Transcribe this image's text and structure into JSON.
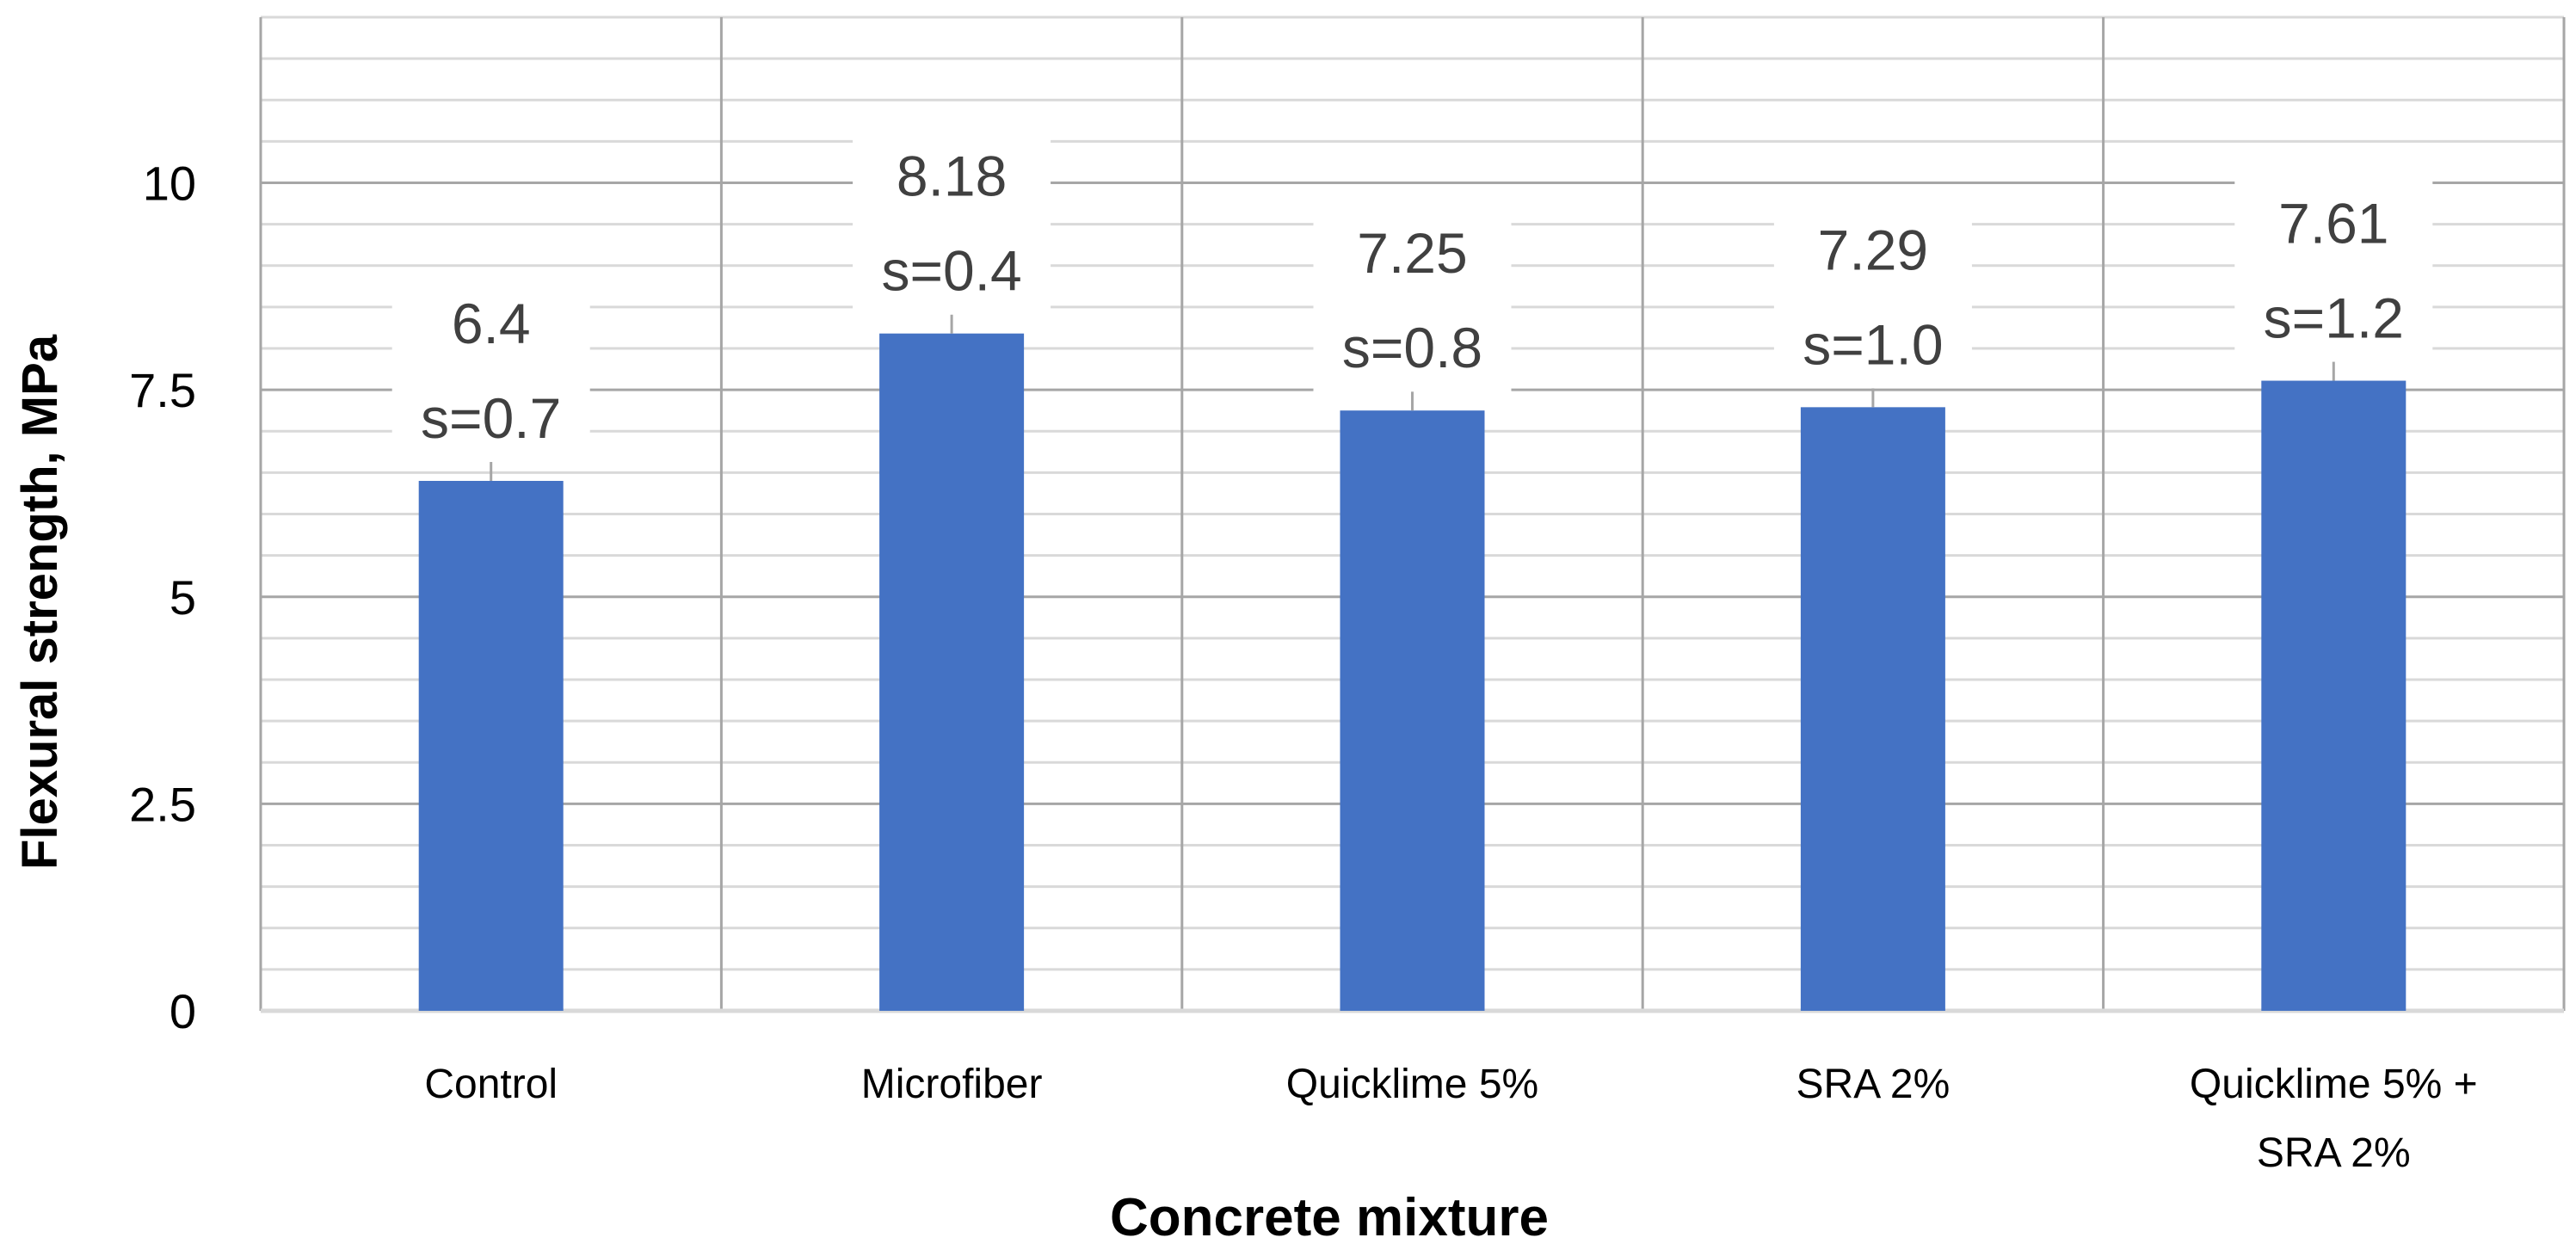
{
  "chart_data": {
    "type": "bar",
    "title": "",
    "xlabel": "Concrete mixture",
    "ylabel": "Flexural strength, MPa",
    "ylim": [
      0,
      12
    ],
    "yticks": [
      "0",
      "2.5",
      "5",
      "7.5",
      "10"
    ],
    "grid": {
      "major": true,
      "minor": true,
      "vertical_separators": true
    },
    "bar_color": "#4472C4",
    "label_color": "#404040",
    "categories": [
      [
        "Control"
      ],
      [
        "Microfiber"
      ],
      [
        "Quicklime 5%"
      ],
      [
        "SRA 2%"
      ],
      [
        "Quicklime 5% +",
        "SRA 2%"
      ]
    ],
    "values": [
      6.4,
      8.18,
      7.25,
      7.29,
      7.61
    ],
    "data_labels": [
      [
        "6.4",
        "s=0.7"
      ],
      [
        "8.18",
        "s=0.4"
      ],
      [
        "7.25",
        "s=0.8"
      ],
      [
        "7.29",
        "s=1.0"
      ],
      [
        "7.61",
        "s=1.2"
      ]
    ]
  }
}
